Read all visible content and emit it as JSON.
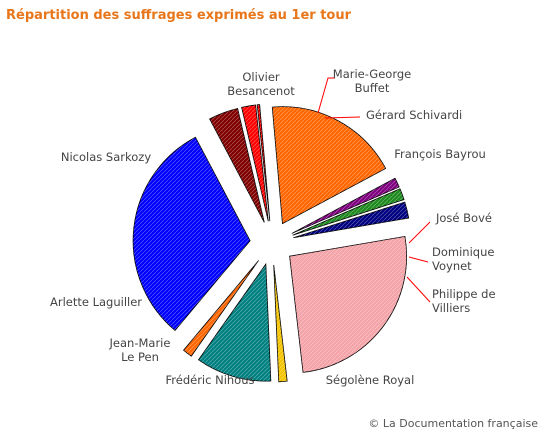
{
  "chart_data": {
    "type": "pie",
    "title": "Répartition des suffrages exprimés au 1er tour",
    "slices": [
      {
        "label": [
          "François Bayrou"
        ],
        "value": 18.57,
        "color": "#ff6600"
      },
      {
        "label": [
          "José Bové"
        ],
        "value": 1.32,
        "color": "#800080"
      },
      {
        "label": [
          "Dominique",
          "Voynet"
        ],
        "value": 1.57,
        "color": "#1f8a1f"
      },
      {
        "label": [
          "Philippe de",
          "Villiers"
        ],
        "value": 2.23,
        "color": "#000080"
      },
      {
        "label": [
          "Ségolène Royal"
        ],
        "value": 25.87,
        "color": "#f4a3a8"
      },
      {
        "label": [
          "Frédéric Nihous"
        ],
        "value": 1.15,
        "color": "#f5c400"
      },
      {
        "label": [
          "Jean-Marie",
          "Le Pen"
        ],
        "value": 10.44,
        "color": "#008080"
      },
      {
        "label": [
          "Arlette Laguiller"
        ],
        "value": 1.33,
        "color": "#ff6600"
      },
      {
        "label": [
          "Nicolas Sarkozy"
        ],
        "value": 31.18,
        "color": "#0000ff"
      },
      {
        "label": [
          "Olivier",
          "Besancenot"
        ],
        "value": 4.08,
        "color": "#800000"
      },
      {
        "label": [
          "Marie-George",
          "Buffet"
        ],
        "value": 1.93,
        "color": "#ff0000"
      },
      {
        "label": [
          "Gérard Schivardi"
        ],
        "value": 0.34,
        "color": "#ff0000"
      }
    ]
  },
  "credit": "© La Documentation française"
}
